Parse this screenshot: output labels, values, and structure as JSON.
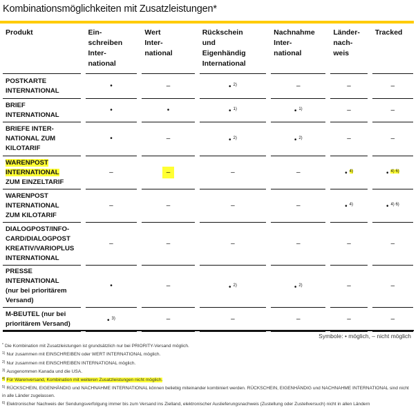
{
  "title": "Kombinationsmöglichkeiten mit Zusatzleistungen*",
  "colors": {
    "accent": "#ffcc00",
    "highlight": "#ffff33"
  },
  "columns": [
    "Produkt",
    "Ein-\nschreiben\nInter-\nnational",
    "Wert\nInter-\nnational",
    "Rückschein\nund\nEigenhändig\nInternational",
    "Nachnahme\nInter-\nnational",
    "Länder-\nnach-\nweis",
    "Tracked"
  ],
  "rows": [
    {
      "product": "POSTKARTE\nINTERNATIONAL",
      "cells": [
        {
          "m": "•",
          "n": ""
        },
        {
          "m": "–",
          "n": ""
        },
        {
          "m": "•",
          "n": "2)"
        },
        {
          "m": "–",
          "n": ""
        },
        {
          "m": "–",
          "n": ""
        },
        {
          "m": "–",
          "n": ""
        }
      ]
    },
    {
      "product": "BRIEF\nINTERNATIONAL",
      "cells": [
        {
          "m": "•",
          "n": ""
        },
        {
          "m": "•",
          "n": ""
        },
        {
          "m": "•",
          "n": "1)"
        },
        {
          "m": "•",
          "n": "1)"
        },
        {
          "m": "–",
          "n": ""
        },
        {
          "m": "–",
          "n": ""
        }
      ]
    },
    {
      "product": "BRIEFE INTER-\nNATIONAL ZUM\nKILOTARIF",
      "cells": [
        {
          "m": "•",
          "n": ""
        },
        {
          "m": "–",
          "n": ""
        },
        {
          "m": "•",
          "n": "2)"
        },
        {
          "m": "•",
          "n": "2)"
        },
        {
          "m": "–",
          "n": ""
        },
        {
          "m": "–",
          "n": ""
        }
      ]
    },
    {
      "product": "WARENPOST\nINTERNATIONAL\nZUM EINZELTARIF",
      "highlight_lines": 2,
      "cells": [
        {
          "m": "–",
          "n": ""
        },
        {
          "m": "–",
          "n": "",
          "hl": "mark"
        },
        {
          "m": "–",
          "n": ""
        },
        {
          "m": "–",
          "n": ""
        },
        {
          "m": "•",
          "n": "4)",
          "hl": "note"
        },
        {
          "m": "•",
          "n": "4) 6)",
          "hl": "note"
        }
      ]
    },
    {
      "product": "WARENPOST\nINTERNATIONAL\nZUM KILOTARIF",
      "cells": [
        {
          "m": "–",
          "n": ""
        },
        {
          "m": "–",
          "n": ""
        },
        {
          "m": "–",
          "n": ""
        },
        {
          "m": "–",
          "n": ""
        },
        {
          "m": "•",
          "n": "4)"
        },
        {
          "m": "•",
          "n": "4) 6)"
        }
      ]
    },
    {
      "product": "DIALOGPOST/INFO-\nCARD/DIALOGPOST\nKREATIV/VARIOPLUS\nINTERNATIONAL",
      "cells": [
        {
          "m": "–",
          "n": ""
        },
        {
          "m": "–",
          "n": ""
        },
        {
          "m": "–",
          "n": ""
        },
        {
          "m": "–",
          "n": ""
        },
        {
          "m": "–",
          "n": ""
        },
        {
          "m": "–",
          "n": ""
        }
      ]
    },
    {
      "product": "PRESSE\nINTERNATIONAL\n(nur bei prioritärem\nVersand)",
      "cells": [
        {
          "m": "•",
          "n": ""
        },
        {
          "m": "–",
          "n": ""
        },
        {
          "m": "•",
          "n": "2)"
        },
        {
          "m": "•",
          "n": "2)"
        },
        {
          "m": "–",
          "n": ""
        },
        {
          "m": "–",
          "n": ""
        }
      ]
    },
    {
      "product": "M-BEUTEL (nur bei\nprioritärem Versand)",
      "cells": [
        {
          "m": "•",
          "n": "3)"
        },
        {
          "m": "–",
          "n": ""
        },
        {
          "m": "–",
          "n": ""
        },
        {
          "m": "–",
          "n": ""
        },
        {
          "m": "–",
          "n": ""
        },
        {
          "m": "–",
          "n": ""
        }
      ]
    }
  ],
  "legend": "Symbole: • möglich, – nicht möglich",
  "footnotes": [
    {
      "mark": "*",
      "text": "Die Kombination mit Zusatzleistungen ist grundsätzlich nur bei PRIORITY-Versand möglich."
    },
    {
      "mark": "1)",
      "text": "Nur zusammen mit EINSCHREIBEN oder WERT INTERNATIONAL möglich."
    },
    {
      "mark": "2)",
      "text": "Nur zusammen mit EINSCHREIBEN INTERNATIONAL möglich."
    },
    {
      "mark": "3)",
      "text": "Ausgenommen Kanada und die USA."
    },
    {
      "mark": "4)",
      "text": "Für Warenversand, Kombination mit weiteren Zusatzleistungen nicht möglich.",
      "highlight": true
    },
    {
      "mark": "5)",
      "text": "RÜCKSCHEIN, EIGENHÄNDIG und NACHNAHME INTERNATIONAL können beliebig miteinander kombiniert werden. RÜCKSCHEIN, EIGENHÄNDIG und NACHNAHME INTERNATIONAL sind nicht in alle Länder zugelassen.",
      "wrap": true
    },
    {
      "mark": "6)",
      "text": "Elektronischer Nachweis der Sendungsverfolgung immer bis zum Versand ins Zielland, elektronischer Auslieferungsnachweis (Zustellung oder Zustellversuch) nicht in allen Ländern"
    }
  ]
}
